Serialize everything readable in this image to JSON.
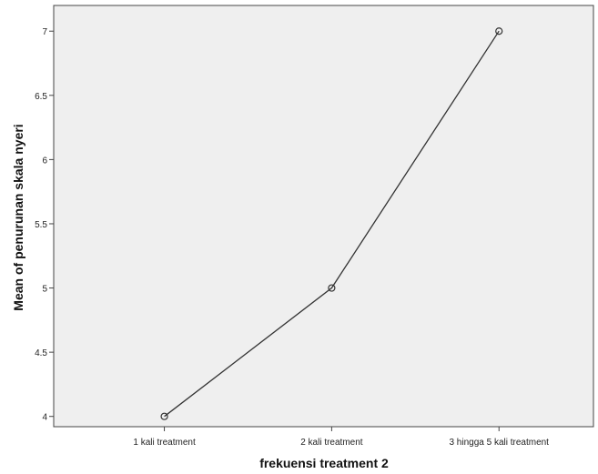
{
  "chart_data": {
    "type": "line",
    "xlabel": "frekuensi treatment 2",
    "ylabel": "Mean of penurunan skala nyeri",
    "categories": [
      "1 kali treatment",
      "2 kali treatment",
      "3 hingga 5 kali treatment"
    ],
    "series": [
      {
        "values": [
          4,
          5,
          7
        ]
      }
    ],
    "ylim": [
      3.92,
      7.2
    ],
    "yticks": [
      "4",
      "4.5",
      "5",
      "5.5",
      "6",
      "6.5",
      "7"
    ],
    "grid": false,
    "legend": "none",
    "colors": {
      "plot_background": "#efefef",
      "line": "#333333",
      "axis": "#444444"
    }
  }
}
